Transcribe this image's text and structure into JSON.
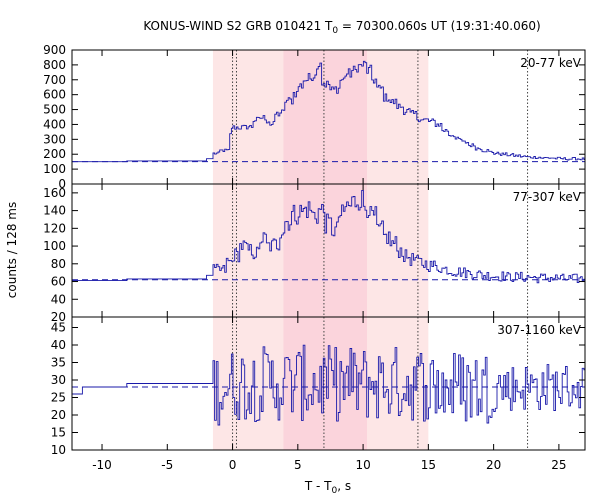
{
  "chart_data": {
    "type": "line",
    "title": "KONUS-WIND S2 GRB 010421 T",
    "title_sub": "0",
    "title_rest": " = 70300.060s UT (19:31:40.060)",
    "xlabel": "T - T",
    "xlabel_sub": "0",
    "xlabel_rest": ", s",
    "ylabel": "counts / 128 ms",
    "xlim": [
      -12.3,
      27
    ],
    "xticks": [
      -10,
      -5,
      0,
      5,
      10,
      15,
      20,
      25
    ],
    "shaded_intervals": [
      {
        "x0": -1.5,
        "x1": 15.0,
        "color": "#fde6e6"
      },
      {
        "x0": 3.9,
        "x1": 10.3,
        "color": "#fbd4dc"
      }
    ],
    "vertical_lines": [
      0.0,
      0.3,
      7.0,
      14.2,
      22.6
    ],
    "colors": {
      "line": "#1a1aaa",
      "dash": "#1a1aaa",
      "vline": "#444444"
    },
    "panels": [
      {
        "band": "20-77 keV",
        "ylim": [
          0,
          900
        ],
        "yticks": [
          0,
          100,
          200,
          300,
          400,
          500,
          600,
          700,
          800,
          900
        ],
        "background": 150,
        "steps": [
          [
            -12.3,
            150
          ],
          [
            -10.0,
            150
          ],
          [
            -8.1,
            155
          ],
          [
            -2.0,
            170
          ],
          [
            -1.5,
            205
          ],
          [
            -1.0,
            225
          ],
          [
            -0.3,
            330
          ],
          [
            -0.2,
            380
          ],
          [
            1.0,
            385
          ],
          [
            1.5,
            430
          ],
          [
            2.0,
            445
          ],
          [
            2.5,
            425
          ],
          [
            2.8,
            400
          ],
          [
            3.2,
            470
          ],
          [
            3.6,
            480
          ],
          [
            4.0,
            560
          ],
          [
            4.6,
            610
          ],
          [
            5.0,
            660
          ],
          [
            5.4,
            700
          ],
          [
            5.7,
            710
          ],
          [
            6.0,
            730
          ],
          [
            6.3,
            760
          ],
          [
            6.5,
            830
          ],
          [
            6.7,
            680
          ],
          [
            7.0,
            670
          ],
          [
            7.4,
            630
          ],
          [
            7.8,
            640
          ],
          [
            8.2,
            700
          ],
          [
            8.6,
            740
          ],
          [
            9.0,
            760
          ],
          [
            9.4,
            790
          ],
          [
            9.8,
            800
          ],
          [
            10.2,
            760
          ],
          [
            10.6,
            700
          ],
          [
            11.0,
            640
          ],
          [
            11.5,
            580
          ],
          [
            12.0,
            550
          ],
          [
            12.5,
            520
          ],
          [
            13.0,
            490
          ],
          [
            13.5,
            470
          ],
          [
            14.0,
            440
          ],
          [
            14.5,
            430
          ],
          [
            15.0,
            420
          ],
          [
            15.5,
            400
          ],
          [
            16.0,
            360
          ],
          [
            16.5,
            330
          ],
          [
            17.0,
            300
          ],
          [
            17.5,
            280
          ],
          [
            18.0,
            260
          ],
          [
            18.5,
            240
          ],
          [
            19.0,
            225
          ],
          [
            19.5,
            215
          ],
          [
            20.0,
            205
          ],
          [
            20.5,
            200
          ],
          [
            21.0,
            195
          ],
          [
            21.5,
            190
          ],
          [
            22.0,
            185
          ],
          [
            22.5,
            180
          ],
          [
            23.0,
            180
          ],
          [
            23.5,
            175
          ],
          [
            24.0,
            175
          ],
          [
            24.5,
            172
          ],
          [
            25.0,
            170
          ],
          [
            25.5,
            168
          ],
          [
            26.0,
            170
          ],
          [
            26.5,
            168
          ],
          [
            27.0,
            168
          ]
        ]
      },
      {
        "band": "77-307 keV",
        "ylim": [
          20,
          170
        ],
        "yticks": [
          20,
          40,
          60,
          80,
          100,
          120,
          140,
          160
        ],
        "background": 62,
        "steps": [
          [
            -12.3,
            61
          ],
          [
            -8.1,
            63
          ],
          [
            -2.0,
            67
          ],
          [
            -1.5,
            73
          ],
          [
            -0.5,
            82
          ],
          [
            0.0,
            90
          ],
          [
            0.5,
            100
          ],
          [
            1.0,
            95
          ],
          [
            1.5,
            92
          ],
          [
            2.0,
            108
          ],
          [
            2.5,
            100
          ],
          [
            3.0,
            102
          ],
          [
            3.5,
            118
          ],
          [
            4.0,
            128
          ],
          [
            4.5,
            136
          ],
          [
            5.0,
            139
          ],
          [
            5.5,
            142
          ],
          [
            6.0,
            135
          ],
          [
            6.5,
            140
          ],
          [
            7.0,
            125
          ],
          [
            7.5,
            118
          ],
          [
            8.0,
            135
          ],
          [
            8.5,
            145
          ],
          [
            9.0,
            150
          ],
          [
            9.5,
            153
          ],
          [
            10.0,
            145
          ],
          [
            10.5,
            133
          ],
          [
            11.0,
            118
          ],
          [
            11.5,
            110
          ],
          [
            12.0,
            103
          ],
          [
            12.5,
            95
          ],
          [
            13.0,
            88
          ],
          [
            13.5,
            85
          ],
          [
            14.0,
            82
          ],
          [
            14.5,
            80
          ],
          [
            15.0,
            78
          ],
          [
            15.5,
            76
          ],
          [
            16.0,
            74
          ],
          [
            16.5,
            72
          ],
          [
            17.0,
            71
          ],
          [
            17.5,
            70
          ],
          [
            18.0,
            69
          ],
          [
            18.5,
            68
          ],
          [
            19.0,
            67
          ],
          [
            19.5,
            67
          ],
          [
            20.0,
            66
          ],
          [
            20.5,
            66
          ],
          [
            21.0,
            65
          ],
          [
            21.5,
            65
          ],
          [
            22.0,
            65
          ],
          [
            23.0,
            64
          ],
          [
            24.0,
            64
          ],
          [
            25.0,
            63
          ],
          [
            26.0,
            63
          ],
          [
            27.0,
            63
          ]
        ]
      },
      {
        "band": "307-1160 keV",
        "ylim": [
          10,
          48
        ],
        "yticks": [
          10,
          15,
          20,
          25,
          30,
          35,
          40,
          45
        ],
        "background": 28,
        "steps": [
          [
            -12.3,
            26
          ],
          [
            -11.5,
            28
          ],
          [
            -8.1,
            29
          ],
          [
            -1.5,
            28
          ],
          [
            -0.5,
            28
          ],
          [
            0.0,
            29
          ],
          [
            4.0,
            29
          ],
          [
            10.0,
            29
          ],
          [
            15.0,
            28
          ],
          [
            27.0,
            28
          ]
        ]
      }
    ]
  }
}
